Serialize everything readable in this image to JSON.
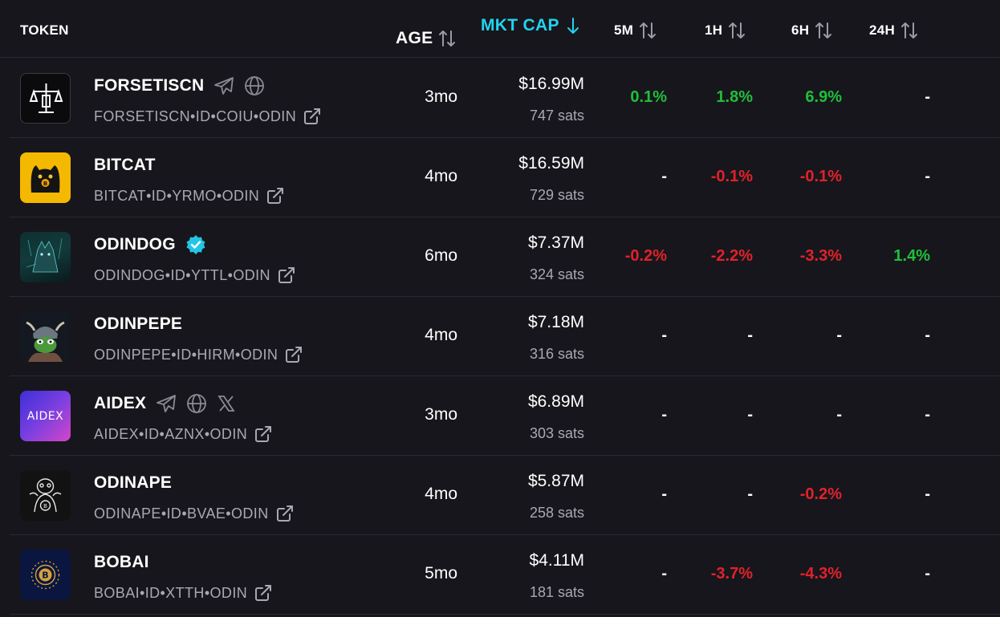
{
  "header": {
    "token": "TOKEN",
    "age": "AGE",
    "mkt_cap": "MKT CAP",
    "m5": "5M",
    "h1": "1H",
    "h6": "6H",
    "h24": "24H"
  },
  "colors": {
    "background": "#17161c",
    "accent": "#22d3ee",
    "positive": "#1fbf3a",
    "negative": "#e0222a",
    "muted": "#a9a8b3"
  },
  "rows": [
    {
      "name": "FORSETISCN",
      "id": "FORSETISCN•ID•COIU•ODIN",
      "age": "3mo",
      "mcap": "$16.99M",
      "sats": "747 sats",
      "m5": "0.1%",
      "h1": "1.8%",
      "h6": "6.9%",
      "h24": "-",
      "icons": [
        "telegram-icon",
        "globe-icon"
      ]
    },
    {
      "name": "BITCAT",
      "id": "BITCAT•ID•YRMO•ODIN",
      "age": "4mo",
      "mcap": "$16.59M",
      "sats": "729 sats",
      "m5": "-",
      "h1": "-0.1%",
      "h6": "-0.1%",
      "h24": "-",
      "icons": []
    },
    {
      "name": "ODINDOG",
      "id": "ODINDOG•ID•YTTL•ODIN",
      "age": "6mo",
      "mcap": "$7.37M",
      "sats": "324 sats",
      "m5": "-0.2%",
      "h1": "-2.2%",
      "h6": "-3.3%",
      "h24": "1.4%",
      "icons": [
        "verified-badge-icon"
      ]
    },
    {
      "name": "ODINPEPE",
      "id": "ODINPEPE•ID•HIRM•ODIN",
      "age": "4mo",
      "mcap": "$7.18M",
      "sats": "316 sats",
      "m5": "-",
      "h1": "-",
      "h6": "-",
      "h24": "-",
      "icons": []
    },
    {
      "name": "AIDEX",
      "id": "AIDEX•ID•AZNX•ODIN",
      "age": "3mo",
      "mcap": "$6.89M",
      "sats": "303 sats",
      "m5": "-",
      "h1": "-",
      "h6": "-",
      "h24": "-",
      "icons": [
        "telegram-icon",
        "globe-icon",
        "x-icon"
      ],
      "avatar_text": "AIDEX"
    },
    {
      "name": "ODINAPE",
      "id": "ODINAPE•ID•BVAE•ODIN",
      "age": "4mo",
      "mcap": "$5.87M",
      "sats": "258 sats",
      "m5": "-",
      "h1": "-",
      "h6": "-0.2%",
      "h24": "-",
      "icons": []
    },
    {
      "name": "BOBAI",
      "id": "BOBAI•ID•XTTH•ODIN",
      "age": "5mo",
      "mcap": "$4.11M",
      "sats": "181 sats",
      "m5": "-",
      "h1": "-3.7%",
      "h6": "-4.3%",
      "h24": "-",
      "icons": []
    }
  ]
}
